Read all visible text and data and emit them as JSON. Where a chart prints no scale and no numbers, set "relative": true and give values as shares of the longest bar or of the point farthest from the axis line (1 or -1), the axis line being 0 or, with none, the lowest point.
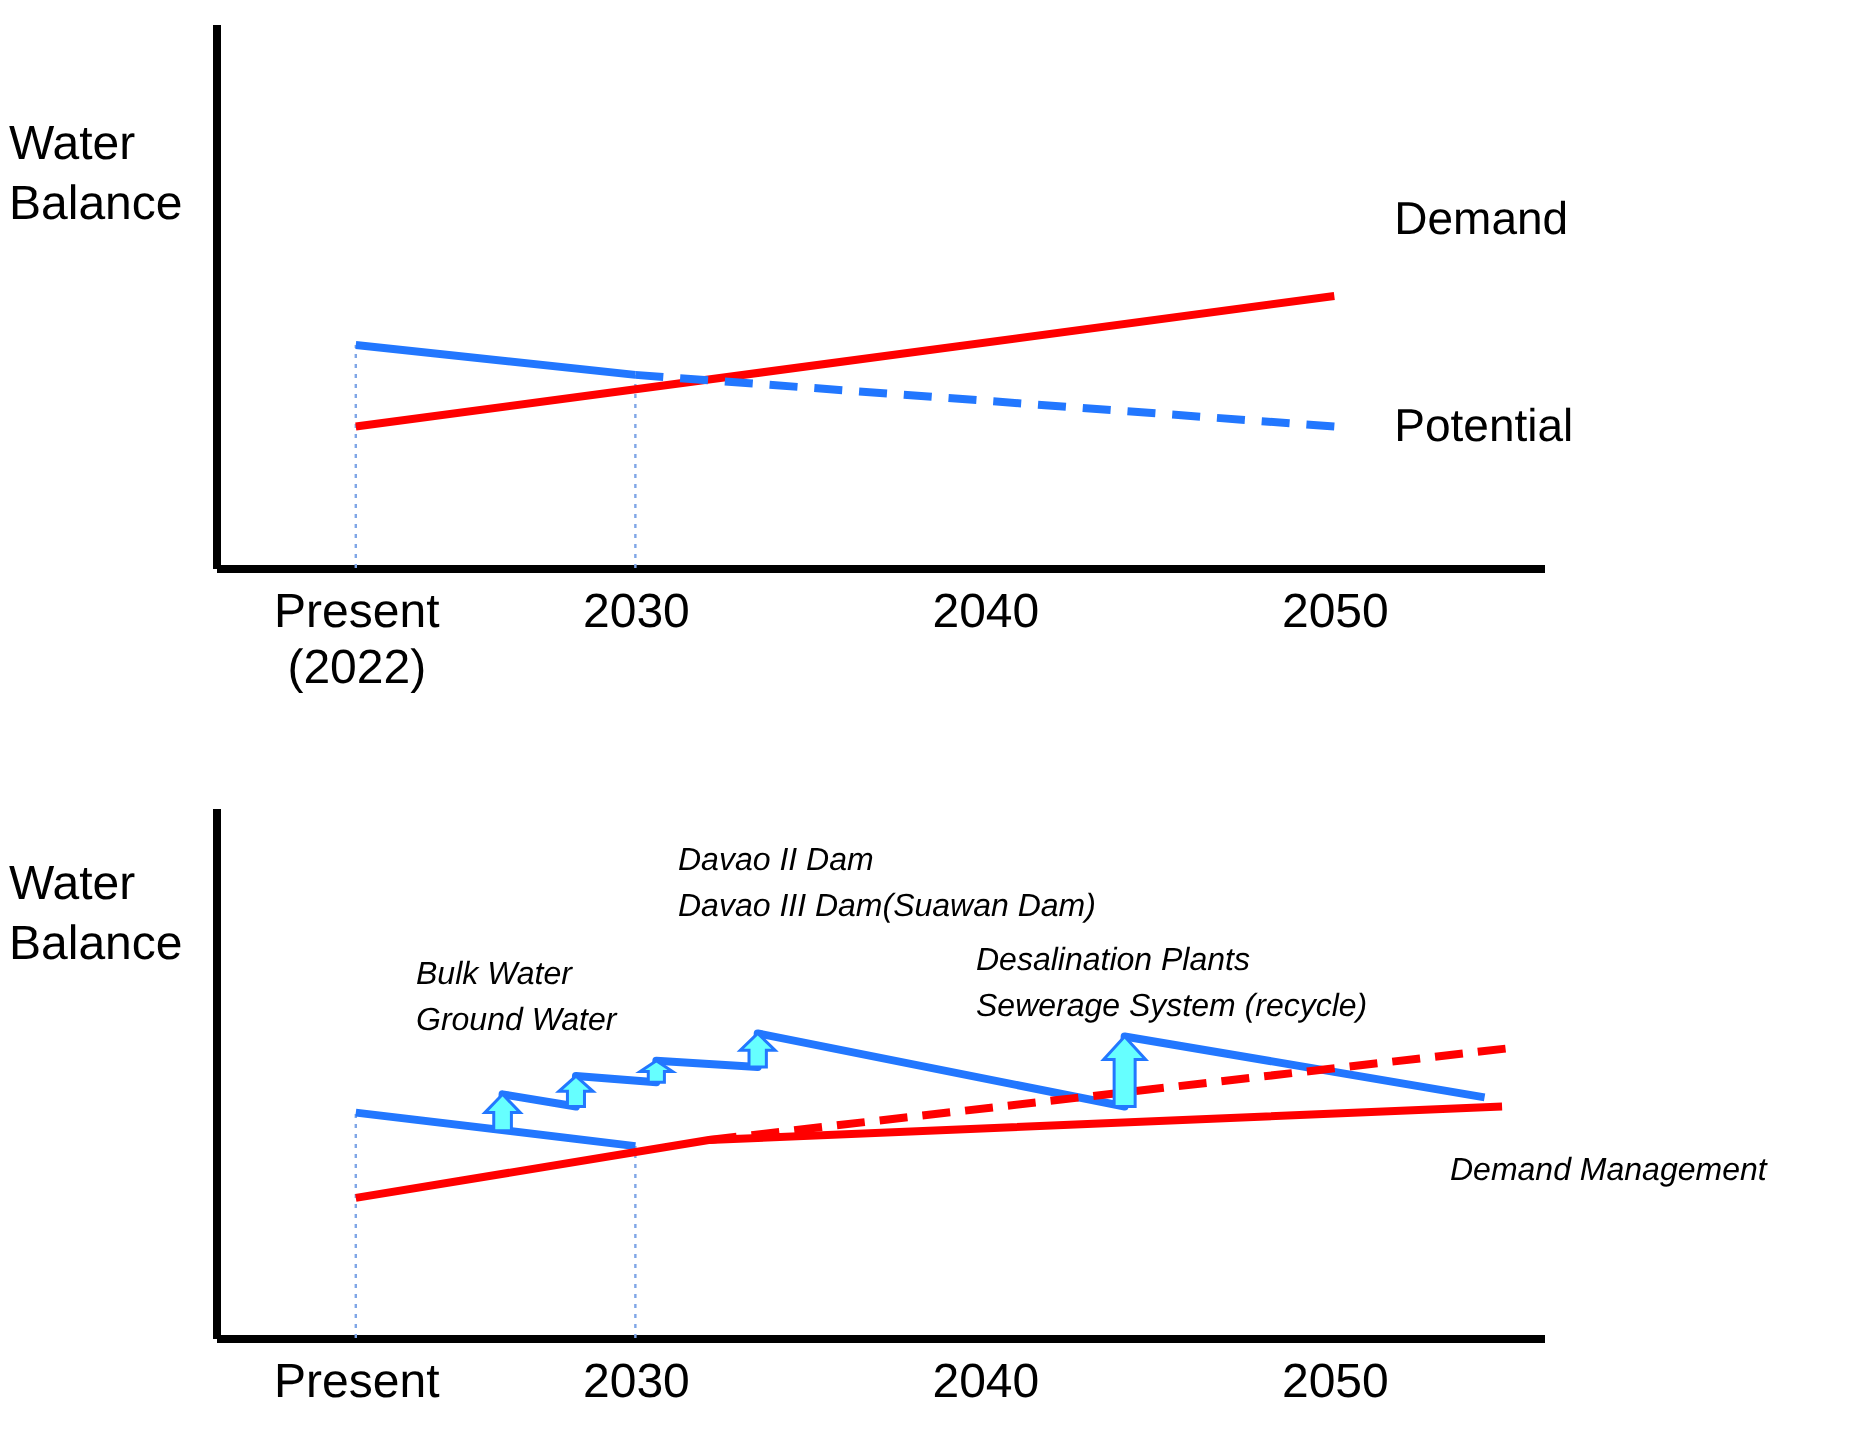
{
  "chart_data": [
    {
      "type": "line",
      "relative": true,
      "ylabel": "Water Balance",
      "xlim": [
        2018,
        2056
      ],
      "xticks": [
        {
          "value": 2022,
          "label": "Present\n(2022)"
        },
        2030,
        2040,
        2050
      ],
      "series": [
        {
          "name": "Demand",
          "color": "#ff0000",
          "x": [
            2022,
            2050
          ],
          "values": [
            0.52,
            1.0
          ]
        },
        {
          "color": "#2277ff",
          "x": [
            2022,
            2030
          ],
          "values": [
            0.82,
            0.71
          ]
        },
        {
          "name": "Potential",
          "color": "#2277ff",
          "line_style": "dashed",
          "x": [
            2030,
            2050
          ],
          "values": [
            0.71,
            0.52
          ]
        }
      ],
      "ref_lines": [
        {
          "axis": "x",
          "value": 2022,
          "color": "#7fa6e6",
          "line_style": "dotted"
        },
        {
          "axis": "x",
          "value": 2030,
          "color": "#7fa6e6",
          "line_style": "dotted"
        }
      ]
    },
    {
      "type": "line",
      "relative": true,
      "ylabel": "Water Balance",
      "xlim": [
        2018,
        2056
      ],
      "xticks": [
        {
          "value": 2022,
          "label": "Present"
        },
        2030,
        2040,
        2050
      ],
      "series": [
        {
          "color": "#2277ff",
          "x": [
            2022,
            2030
          ],
          "values": [
            0.74,
            0.63
          ]
        },
        {
          "color": "#2277ff",
          "x": [
            2026.2,
            2026.2,
            2028.3,
            2028.3,
            2030.6,
            2030.6,
            2033.5,
            2033.5,
            2044.0,
            2044.0,
            2054.3
          ],
          "values": [
            0.68,
            0.8,
            0.76,
            0.86,
            0.84,
            0.91,
            0.89,
            1.0,
            0.76,
            0.99,
            0.79
          ]
        },
        {
          "color": "#ff0000",
          "x": [
            2022,
            2032.1,
            2054.8
          ],
          "values": [
            0.46,
            0.65,
            0.76
          ]
        },
        {
          "color": "#ff0000",
          "line_style": "dashed",
          "x": [
            2032.1,
            2054.9
          ],
          "values": [
            0.65,
            0.95
          ]
        }
      ],
      "ref_lines": [
        {
          "axis": "x",
          "value": 2022,
          "color": "#7fa6e6",
          "line_style": "dotted"
        },
        {
          "axis": "x",
          "value": 2030,
          "color": "#7fa6e6",
          "line_style": "dotted"
        }
      ],
      "annotations": [
        "Bulk Water\nGround Water",
        "Davao II Dam\nDavao III Dam(Suawan Dam)",
        "Desalination Plants\nSewerage System (recycle)",
        "Demand Management"
      ]
    }
  ]
}
